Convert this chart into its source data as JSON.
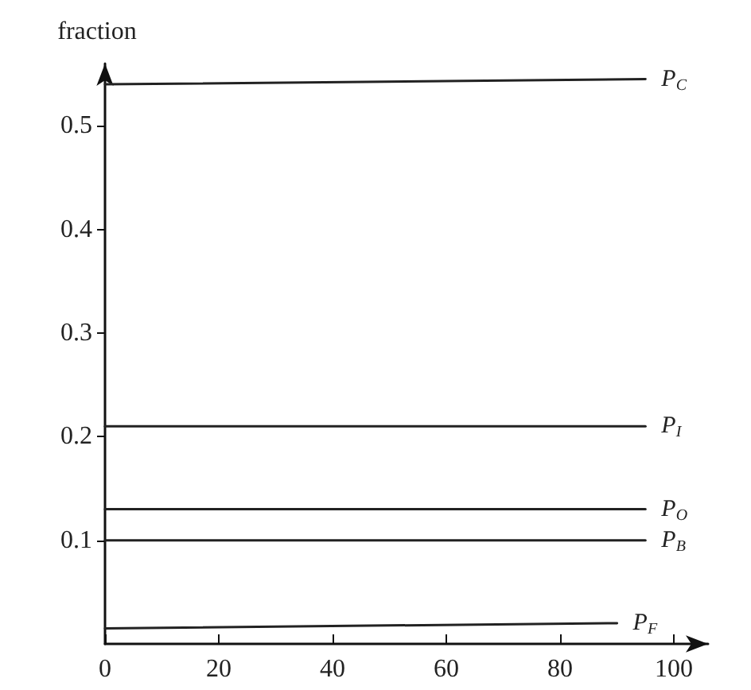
{
  "chart_data": {
    "type": "line",
    "ylabel": "fraction",
    "series": [
      {
        "name": "P$_{C}$",
        "color": "#222222",
        "x": [
          0,
          95
        ],
        "values": [
          0.54,
          0.545
        ]
      },
      {
        "name": "P$_{I}$",
        "color": "#222222",
        "x": [
          0,
          95
        ],
        "values": [
          0.21,
          0.21
        ]
      },
      {
        "name": "P$_{O}$",
        "color": "#222222",
        "x": [
          0,
          95
        ],
        "values": [
          0.13,
          0.13
        ]
      },
      {
        "name": "P$_{B}$",
        "color": "#222222",
        "x": [
          0,
          95
        ],
        "values": [
          0.1,
          0.1
        ]
      },
      {
        "name": "P$_{F}$",
        "color": "#222222",
        "x": [
          0,
          90
        ],
        "values": [
          0.015,
          0.02
        ]
      }
    ],
    "xlim": [
      0,
      106
    ],
    "xticks": [
      0,
      20,
      40,
      60,
      80,
      100
    ],
    "ylim": [
      0,
      0.56
    ],
    "yticks": [
      0.1,
      0.2,
      0.3,
      0.4,
      0.5
    ],
    "grid": false,
    "legend": false,
    "marker": "none",
    "line_style": "solid"
  }
}
